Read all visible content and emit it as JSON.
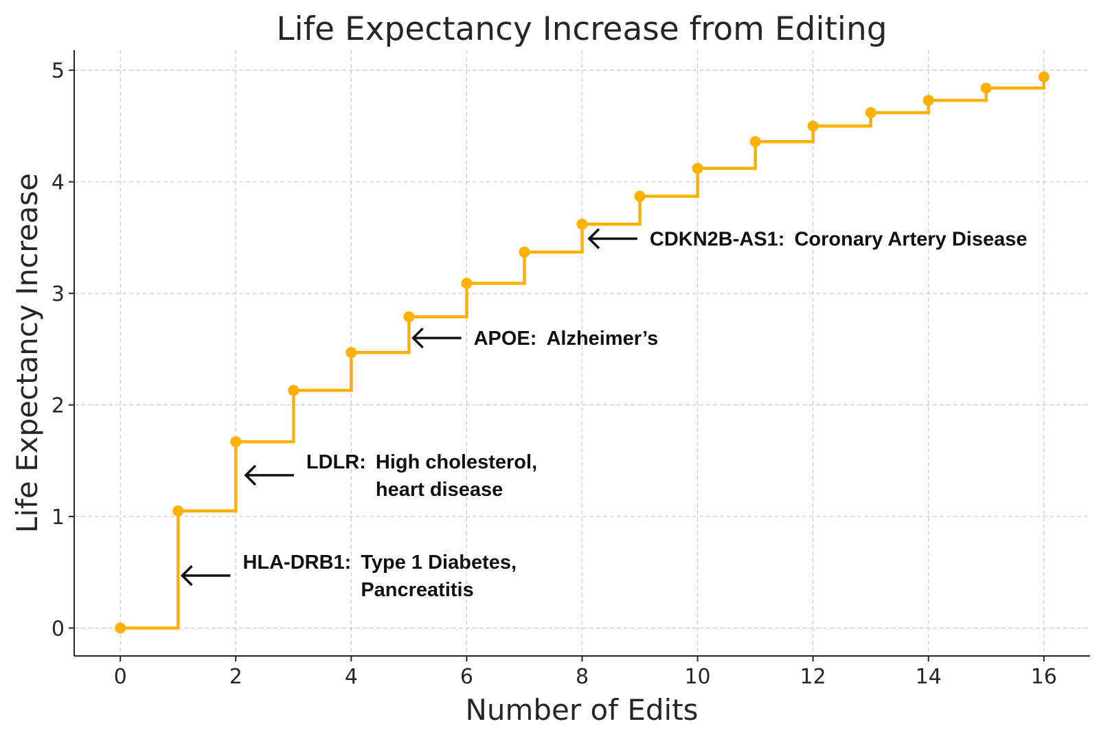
{
  "chart_data": {
    "type": "line",
    "drawstyle": "steps-post",
    "title": "Life Expectancy Increase from Editing",
    "xlabel": "Number of Edits",
    "ylabel": "Life Expectancy Increase",
    "xlim": [
      -0.8,
      16.8
    ],
    "ylim": [
      -0.25,
      5.18
    ],
    "xticks": [
      0,
      2,
      4,
      6,
      8,
      10,
      12,
      14,
      16
    ],
    "yticks": [
      0,
      1,
      2,
      3,
      4,
      5
    ],
    "grid": true,
    "color": "#FFB000",
    "x": [
      0,
      1,
      2,
      3,
      4,
      5,
      6,
      7,
      8,
      9,
      10,
      11,
      12,
      13,
      14,
      15,
      16
    ],
    "y": [
      0,
      1.05,
      1.67,
      2.13,
      2.47,
      2.79,
      3.09,
      3.37,
      3.62,
      3.87,
      4.12,
      4.36,
      4.5,
      4.62,
      4.73,
      4.84,
      4.94
    ],
    "annotations": [
      {
        "arrow_x": 1.05,
        "arrow_y": 0.47,
        "label": "HLA-DRB1:",
        "text": [
          "Type 1 Diabetes,",
          "Pancreatitis"
        ]
      },
      {
        "arrow_x": 2.15,
        "arrow_y": 1.37,
        "label": "LDLR:",
        "text": [
          "High cholesterol,",
          "heart disease"
        ]
      },
      {
        "arrow_x": 5.05,
        "arrow_y": 2.6,
        "label": "APOE:",
        "text": [
          "Alzheimer’s"
        ]
      },
      {
        "arrow_x": 8.1,
        "arrow_y": 3.49,
        "label": "CDKN2B-AS1:",
        "text": [
          "Coronary Artery Disease"
        ]
      }
    ]
  }
}
